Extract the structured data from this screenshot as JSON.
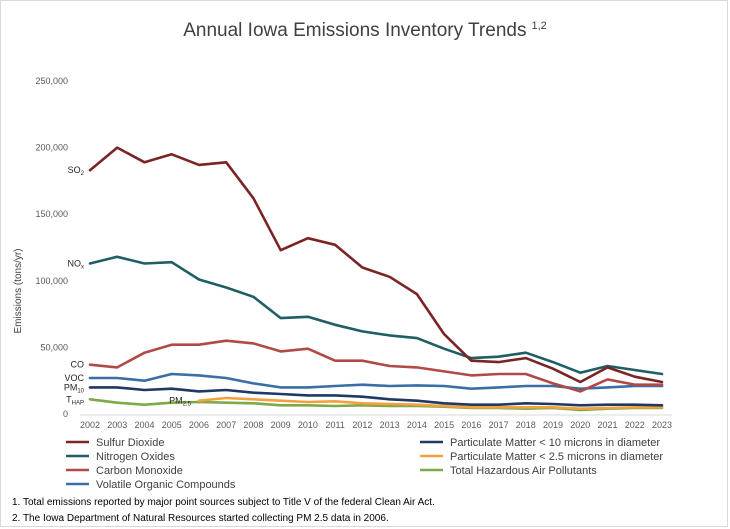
{
  "chart_data": {
    "type": "line",
    "title": "Annual Iowa Emissions Inventory Trends",
    "title_superscript": "1,2",
    "ylabel": "Emissions (tons/yr)",
    "xlabel": "",
    "ylim": [
      0,
      250000
    ],
    "yticks": [
      0,
      50000,
      100000,
      150000,
      200000,
      250000
    ],
    "ytick_labels": [
      "0",
      "50,000",
      "100,000",
      "150,000",
      "200,000",
      "250,000"
    ],
    "grid": false,
    "legend_position": "bottom",
    "x": [
      "2002",
      "2003",
      "2004",
      "2005",
      "2006",
      "2007",
      "2008",
      "2009",
      "2010",
      "2011",
      "2012",
      "2013",
      "2014",
      "2015",
      "2016",
      "2017",
      "2018",
      "2019",
      "2020",
      "2021",
      "2022",
      "2023"
    ],
    "series": [
      {
        "name": "Sulfur Dioxide",
        "label": "SO",
        "label_sub": "2",
        "color": "#7b2426",
        "start_index": 0,
        "values": [
          183000,
          200000,
          189000,
          195000,
          187000,
          189000,
          162000,
          123000,
          132000,
          127000,
          110000,
          103000,
          90000,
          60000,
          40000,
          39000,
          42000,
          34000,
          24000,
          35000,
          28000,
          24000
        ]
      },
      {
        "name": "Nitrogen Oxides",
        "label": "NO",
        "label_sub": "x",
        "color": "#1f5f63",
        "start_index": 0,
        "values": [
          113000,
          118000,
          113000,
          114000,
          101000,
          95000,
          88000,
          72000,
          73000,
          67000,
          62000,
          59000,
          57000,
          49000,
          42000,
          43000,
          46000,
          39000,
          31000,
          36000,
          33000,
          30000
        ]
      },
      {
        "name": "Carbon Monoxide",
        "label": "CO",
        "label_sub": "",
        "color": "#b04a47",
        "start_index": 0,
        "values": [
          37000,
          35000,
          46000,
          52000,
          52000,
          55000,
          53000,
          47000,
          49000,
          40000,
          40000,
          36000,
          35000,
          32000,
          29000,
          30000,
          30000,
          23000,
          17000,
          26000,
          22000,
          22000
        ]
      },
      {
        "name": "Volatile Organic Compounds",
        "label": "VOC",
        "label_sub": "",
        "color": "#3a6ea5",
        "start_index": 0,
        "values": [
          27000,
          27000,
          25000,
          30000,
          29000,
          27000,
          23000,
          20000,
          20000,
          21000,
          22000,
          21000,
          21500,
          21000,
          19000,
          20000,
          21000,
          21000,
          19000,
          20000,
          21000,
          21000
        ]
      },
      {
        "name": "Particulate Matter < 10 microns in diameter",
        "label": "PM",
        "label_sub": "10",
        "color": "#1f3864",
        "start_index": 0,
        "values": [
          20000,
          20000,
          18000,
          19000,
          17000,
          18000,
          16000,
          15000,
          14000,
          14000,
          13000,
          11000,
          10000,
          8000,
          7000,
          7000,
          8000,
          7500,
          6500,
          7000,
          7000,
          6500
        ]
      },
      {
        "name": "Particulate Matter < 2.5 microns in diameter",
        "label": "PM",
        "label_sub": "2.5",
        "color": "#f4a13d",
        "start_index": 4,
        "values": [
          null,
          null,
          null,
          null,
          10000,
          12000,
          11000,
          10000,
          9000,
          9500,
          8000,
          7500,
          7000,
          6000,
          5000,
          5000,
          5000,
          5000,
          4000,
          4500,
          5000,
          5000
        ]
      },
      {
        "name": "Total Hazardous Air Pollutants",
        "label": "T",
        "label_sub": "HAP",
        "color": "#7fa84a",
        "start_index": 0,
        "values": [
          11000,
          8500,
          7000,
          8500,
          9000,
          8500,
          8000,
          6500,
          6500,
          6000,
          6500,
          6000,
          6000,
          5500,
          4500,
          4500,
          4000,
          4500,
          3000,
          4000,
          4500,
          4500
        ]
      }
    ],
    "legend_order": [
      0,
      4,
      1,
      5,
      2,
      6,
      3
    ]
  },
  "footnotes": [
    "1. Total emissions reported by major point sources subject to Title V of the federal Clean Air Act.",
    "2. The Iowa Department of Natural Resources started collecting PM 2.5 data in 2006."
  ]
}
